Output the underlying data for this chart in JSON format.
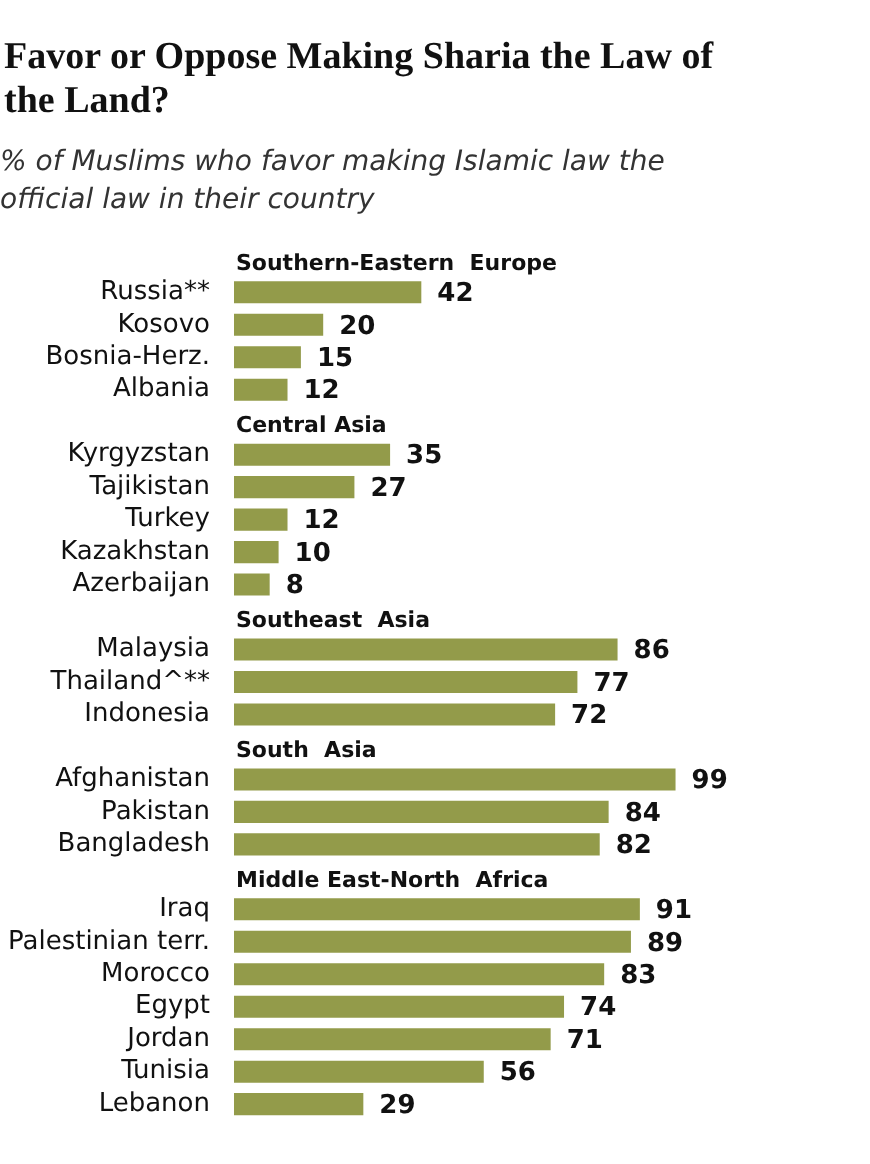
{
  "chart_data": {
    "type": "bar",
    "orientation": "horizontal",
    "title": "Favor or Oppose Making Sharia the Law of the Land?",
    "subtitle": "% of Muslims who favor making Islamic law the official law in their country",
    "categories": [
      "Southern-Eastern  Europe",
      "Russia**",
      "Kosovo",
      "Bosnia-Herz.",
      "Albania",
      "Central Asia",
      "Kyrgyzstan",
      "Tajikistan",
      "Turkey",
      "Kazakhstan",
      "Azerbaijan",
      "Southeast  Asia",
      "Malaysia",
      "Thailand^**",
      "Indonesia",
      "South  Asia",
      "Afghanistan",
      "Pakistan",
      "Bangladesh",
      "Middle East-North  Africa",
      "Iraq",
      "Palestinian terr.",
      "Morocco",
      "Egypt",
      "Jordan",
      "Tunisia",
      "Lebanon"
    ],
    "values": [
      null,
      42,
      20,
      15,
      12,
      null,
      35,
      27,
      12,
      10,
      8,
      null,
      86,
      77,
      72,
      null,
      99,
      84,
      82,
      null,
      91,
      89,
      83,
      74,
      71,
      56,
      29
    ],
    "color": "#939b4a",
    "xlim": [
      0,
      100
    ],
    "tick_labels": "y",
    "data_labels": true,
    "legend": false
  }
}
